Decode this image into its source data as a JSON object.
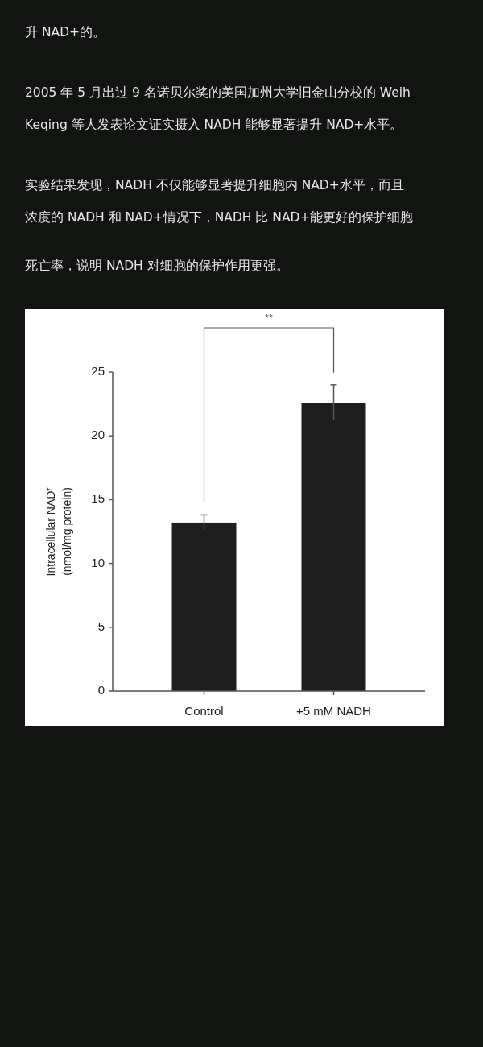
{
  "chart_data": {
    "type": "bar",
    "categories": [
      "Control",
      "+5 mM NADH"
    ],
    "values": [
      13.2,
      22.6
    ],
    "errors": [
      0.6,
      1.4
    ],
    "color": "#1e1e1e",
    "ylabel": "Intracellular NAD⁺\n(nmol/mg protein)",
    "ylim": [
      0,
      25
    ],
    "yticks": [
      0,
      5,
      10,
      15,
      20,
      25
    ],
    "annotations": [
      "升 NAD+的。",
      "2005 年 5 月出过 9 名诺贝尔奖的美国加州大学旧金山分校的 Weih",
      "Keqing 等人发表论文证实摄入 NADH 能够显著提升 NAD+水平。",
      "实验结果发现，NADH 不仅能够显著提升细胞内 NAD+水平，而且",
      "浓度的 NADH 和 NAD+情况下，NADH 比 NAD+能更好的保护细胞",
      "死亡率，说明 NADH 对细胞的保护作用更强。",
      "**"
    ]
  }
}
